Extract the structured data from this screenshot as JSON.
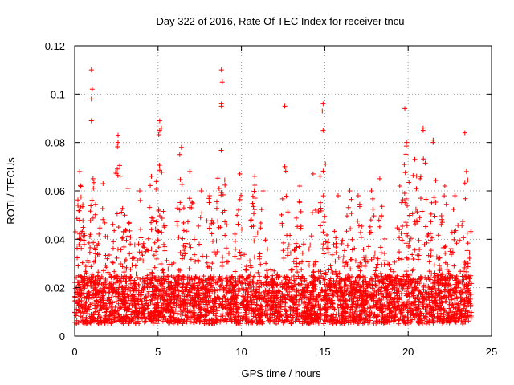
{
  "chart_data": {
    "type": "scatter",
    "title": "Day 322 of 2016, Rate Of TEC Index for receiver tncu",
    "xlabel": "GPS time / hours",
    "ylabel": "ROTI / TECUs",
    "xlim": [
      0,
      25
    ],
    "ylim": [
      0,
      0.12
    ],
    "xticks": [
      0,
      5,
      10,
      15,
      20,
      25
    ],
    "xtick_labels": [
      "0",
      "5",
      "10",
      "15",
      "20",
      "25"
    ],
    "yticks": [
      0,
      0.02,
      0.04,
      0.06,
      0.08,
      0.1,
      0.12
    ],
    "ytick_labels": [
      "0",
      "0.02",
      "0.04",
      "0.06",
      "0.08",
      "0.1",
      "0.12"
    ],
    "grid": true,
    "marker": "+",
    "color": "#ff0000",
    "data_time_range": [
      0,
      23.8
    ],
    "baseline_range": [
      0.005,
      0.025
    ],
    "notable_points": [
      {
        "x": 1.0,
        "y": 0.11
      },
      {
        "x": 1.05,
        "y": 0.102
      },
      {
        "x": 1.0,
        "y": 0.098
      },
      {
        "x": 1.0,
        "y": 0.089
      },
      {
        "x": 8.8,
        "y": 0.11
      },
      {
        "x": 8.85,
        "y": 0.105
      },
      {
        "x": 8.8,
        "y": 0.096
      },
      {
        "x": 12.6,
        "y": 0.095
      },
      {
        "x": 14.9,
        "y": 0.096
      },
      {
        "x": 14.85,
        "y": 0.093
      },
      {
        "x": 19.8,
        "y": 0.094
      },
      {
        "x": 20.9,
        "y": 0.086
      },
      {
        "x": 23.4,
        "y": 0.084
      },
      {
        "x": 5.1,
        "y": 0.089
      },
      {
        "x": 5.2,
        "y": 0.086
      },
      {
        "x": 6.4,
        "y": 0.078
      },
      {
        "x": 2.6,
        "y": 0.083
      },
      {
        "x": 21.5,
        "y": 0.081
      }
    ],
    "activity_peaks": [
      {
        "x": 0.3,
        "y": 0.068
      },
      {
        "x": 1.1,
        "y": 0.065
      },
      {
        "x": 1.7,
        "y": 0.063
      },
      {
        "x": 2.6,
        "y": 0.08
      },
      {
        "x": 3.2,
        "y": 0.061
      },
      {
        "x": 3.9,
        "y": 0.06
      },
      {
        "x": 4.6,
        "y": 0.066
      },
      {
        "x": 5.1,
        "y": 0.085
      },
      {
        "x": 6.3,
        "y": 0.075
      },
      {
        "x": 6.9,
        "y": 0.068
      },
      {
        "x": 7.6,
        "y": 0.06
      },
      {
        "x": 8.1,
        "y": 0.058
      },
      {
        "x": 8.8,
        "y": 0.095
      },
      {
        "x": 9.9,
        "y": 0.067
      },
      {
        "x": 10.8,
        "y": 0.066
      },
      {
        "x": 11.3,
        "y": 0.06
      },
      {
        "x": 12.6,
        "y": 0.07
      },
      {
        "x": 13.5,
        "y": 0.062
      },
      {
        "x": 14.3,
        "y": 0.067
      },
      {
        "x": 14.9,
        "y": 0.085
      },
      {
        "x": 15.8,
        "y": 0.058
      },
      {
        "x": 16.5,
        "y": 0.06
      },
      {
        "x": 17.0,
        "y": 0.058
      },
      {
        "x": 17.8,
        "y": 0.06
      },
      {
        "x": 18.3,
        "y": 0.065
      },
      {
        "x": 19.5,
        "y": 0.062
      },
      {
        "x": 19.9,
        "y": 0.08
      },
      {
        "x": 20.4,
        "y": 0.073
      },
      {
        "x": 20.9,
        "y": 0.085
      },
      {
        "x": 21.5,
        "y": 0.08
      },
      {
        "x": 22.2,
        "y": 0.062
      },
      {
        "x": 22.8,
        "y": 0.058
      },
      {
        "x": 23.5,
        "y": 0.068
      }
    ]
  }
}
